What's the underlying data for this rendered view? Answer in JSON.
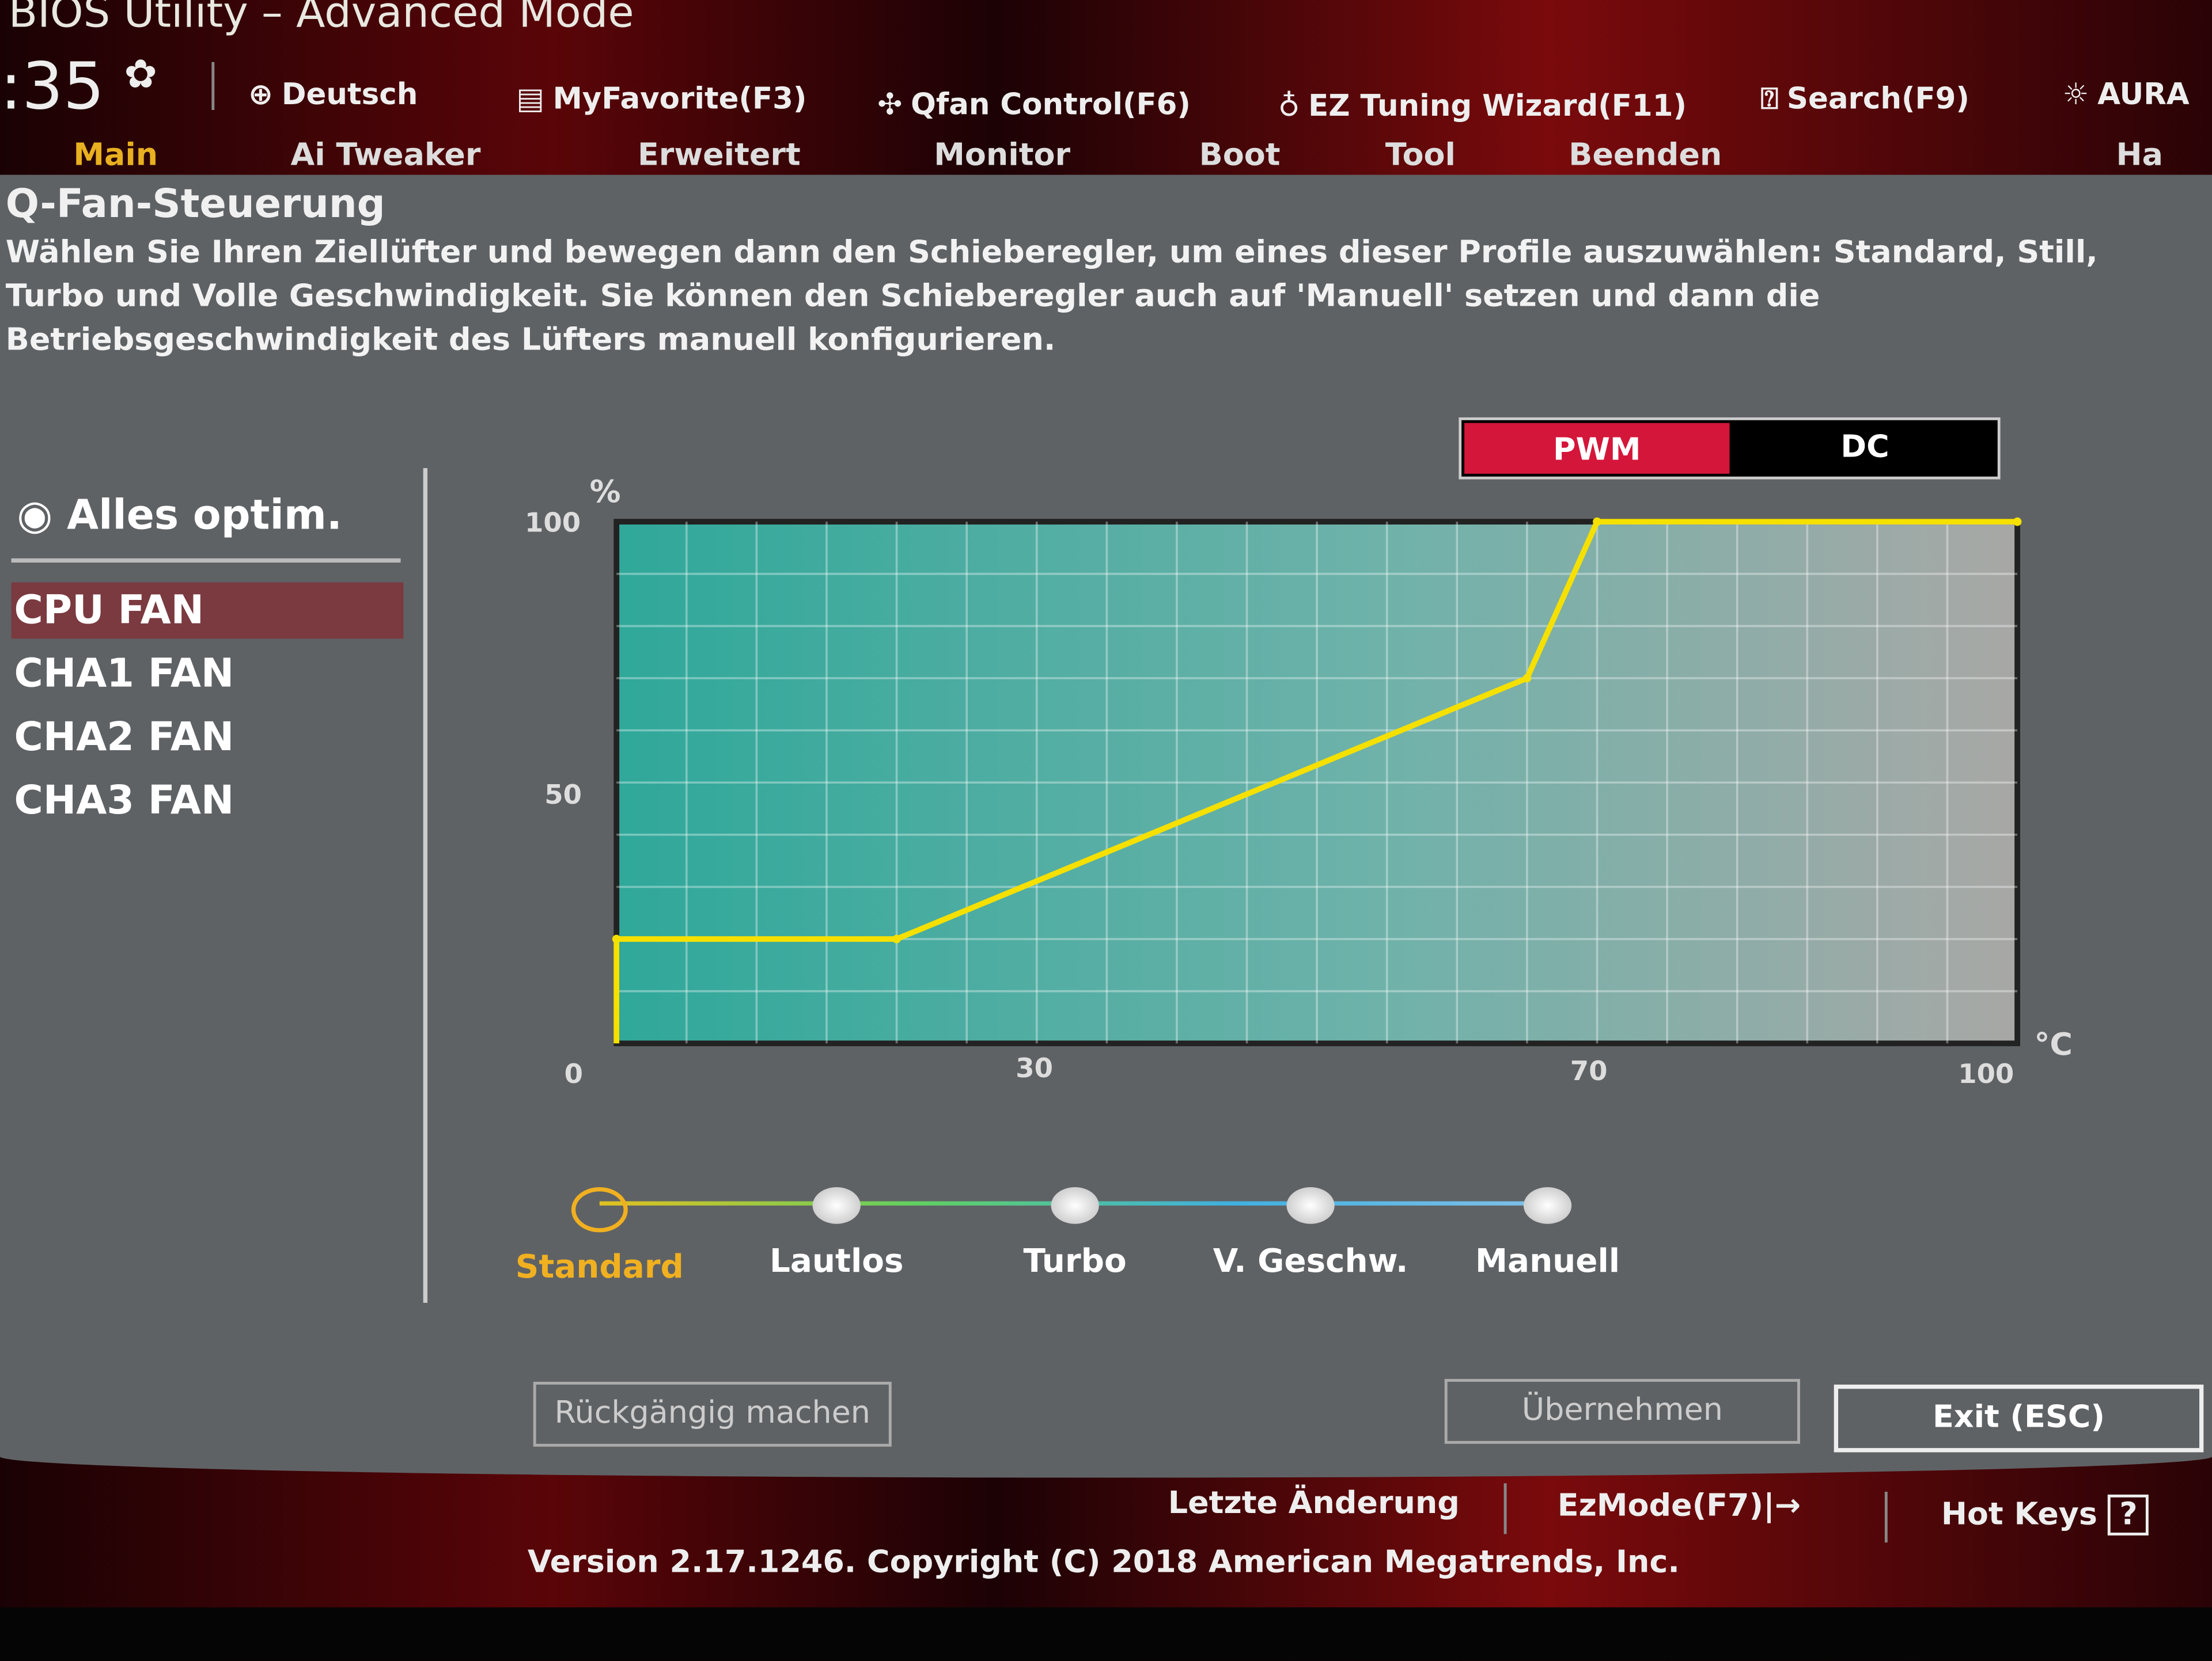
{
  "header": {
    "title": "BIOS Utility – Advanced Mode",
    "clock": ":35",
    "toolbar": [
      {
        "label": "Deutsch",
        "icon": "globe-icon"
      },
      {
        "label": "MyFavorite(F3)",
        "icon": "favorite-icon"
      },
      {
        "label": "Qfan Control(F6)",
        "icon": "fan-icon"
      },
      {
        "label": "EZ Tuning Wizard(F11)",
        "icon": "bulb-icon"
      },
      {
        "label": "Search(F9)",
        "icon": "search-help-icon"
      },
      {
        "label": "AURA",
        "icon": "aura-icon"
      }
    ]
  },
  "tabs": [
    {
      "label": "Main",
      "active": true
    },
    {
      "label": "Ai Tweaker"
    },
    {
      "label": "Erweitert"
    },
    {
      "label": "Monitor"
    },
    {
      "label": "Boot"
    },
    {
      "label": "Tool"
    },
    {
      "label": "Beenden"
    },
    {
      "label": "Ha"
    }
  ],
  "qfan": {
    "title": "Q-Fan-Steuerung",
    "description": "Wählen Sie Ihren Ziellüfter und bewegen dann den Schieberegler, um eines dieser Profile auszuwählen: Standard, Still, Turbo und Volle Geschwindigkeit. Sie können den Schieberegler auch auf 'Manuell' setzen und dann die Betriebsgeschwindigkeit des Lüfters manuell konfigurieren.",
    "optimize_label": "Alles optim.",
    "fans": [
      {
        "label": "CPU FAN",
        "selected": true
      },
      {
        "label": "CHA1 FAN"
      },
      {
        "label": "CHA2 FAN"
      },
      {
        "label": "CHA3 FAN"
      }
    ],
    "mode": {
      "options": [
        "PWM",
        "DC"
      ],
      "selected": "PWM"
    },
    "profiles": [
      {
        "label": "Standard",
        "selected": true
      },
      {
        "label": "Lautlos"
      },
      {
        "label": "Turbo"
      },
      {
        "label": "V. Geschw."
      },
      {
        "label": "Manuell"
      }
    ],
    "buttons": {
      "undo": "Rückgängig machen",
      "apply": "Übernehmen",
      "exit": "Exit (ESC)"
    }
  },
  "chart_data": {
    "type": "line",
    "ylabel": "%",
    "xlabel": "°C",
    "xlim": [
      0,
      100
    ],
    "ylim": [
      0,
      100
    ],
    "xticks": [
      "0",
      "30",
      "70",
      "100"
    ],
    "yticks": [
      "100",
      "50"
    ],
    "grid": true,
    "points": [
      [
        0,
        20
      ],
      [
        20,
        20
      ],
      [
        65,
        70
      ],
      [
        70,
        100
      ],
      [
        100,
        100
      ]
    ],
    "colors": {
      "line": "#f5e000",
      "accent": "#d4163a",
      "selected_profile": "#f0b020"
    }
  },
  "footer": {
    "last_change": "Letzte Änderung",
    "ezmode": "EzMode(F7)|→",
    "hotkeys": "Hot Keys",
    "hotkeys_icon": "?",
    "copyright": "Version 2.17.1246. Copyright (C) 2018 American Megatrends, Inc."
  }
}
